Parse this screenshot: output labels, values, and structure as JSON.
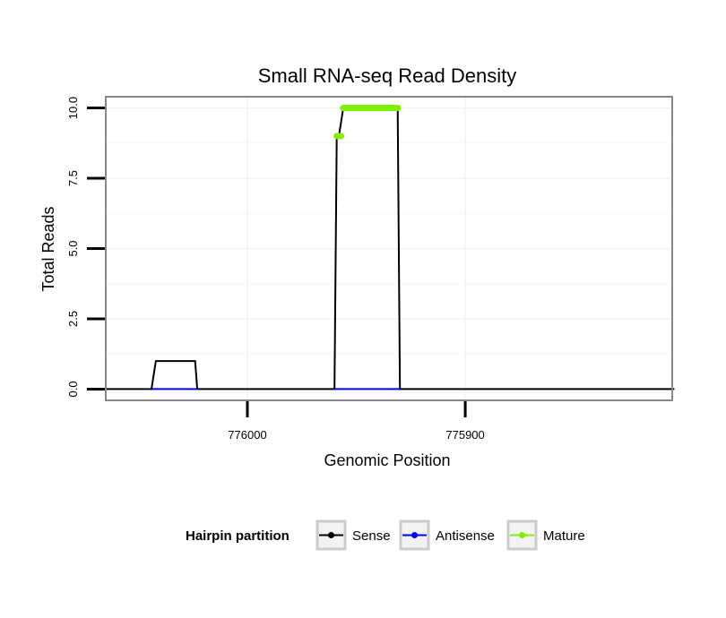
{
  "chart_data": {
    "type": "line",
    "title": "Small RNA-seq Read Density",
    "xlabel": "Genomic Position",
    "ylabel": "Total Reads",
    "x_reversed": true,
    "xlim": [
      776065,
      775805
    ],
    "ylim": [
      -0.4,
      10.4
    ],
    "x_ticks": [
      776000,
      775900
    ],
    "x_tick_labels": [
      "776000",
      "775900"
    ],
    "y_ticks": [
      0,
      2.5,
      5,
      7.5,
      10
    ],
    "y_tick_labels": [
      "0.0",
      "2.5",
      "5.0",
      "7.5",
      "10.0"
    ],
    "grid": true,
    "legend": {
      "title": "Hairpin partition",
      "position": "bottom",
      "entries": [
        {
          "label": "Sense",
          "color": "#000000"
        },
        {
          "label": "Antisense",
          "color": "#0000ff"
        },
        {
          "label": "Mature",
          "color": "#80f000"
        }
      ]
    },
    "series": [
      {
        "name": "Sense",
        "color": "#000000",
        "style": "line",
        "x": [
          776065,
          776044,
          776042,
          776024,
          776023,
          775960,
          775959,
          775958,
          775956,
          775931,
          775930,
          775804
        ],
        "y": [
          0,
          0,
          1,
          1,
          0,
          0,
          9,
          9,
          10,
          10,
          0,
          0
        ]
      },
      {
        "name": "Antisense",
        "color": "#0000ff",
        "style": "line",
        "segments": [
          {
            "x": [
              776044,
              776023
            ],
            "y": [
              0,
              0
            ]
          },
          {
            "x": [
              775960,
              775930
            ],
            "y": [
              0,
              0
            ]
          }
        ]
      },
      {
        "name": "Mature",
        "color": "#80f000",
        "style": "points",
        "segments": [
          {
            "x": [
              775959,
              775957
            ],
            "y": [
              9,
              9
            ]
          },
          {
            "x": [
              775956,
              775931
            ],
            "y": [
              10,
              10
            ]
          }
        ]
      }
    ]
  }
}
